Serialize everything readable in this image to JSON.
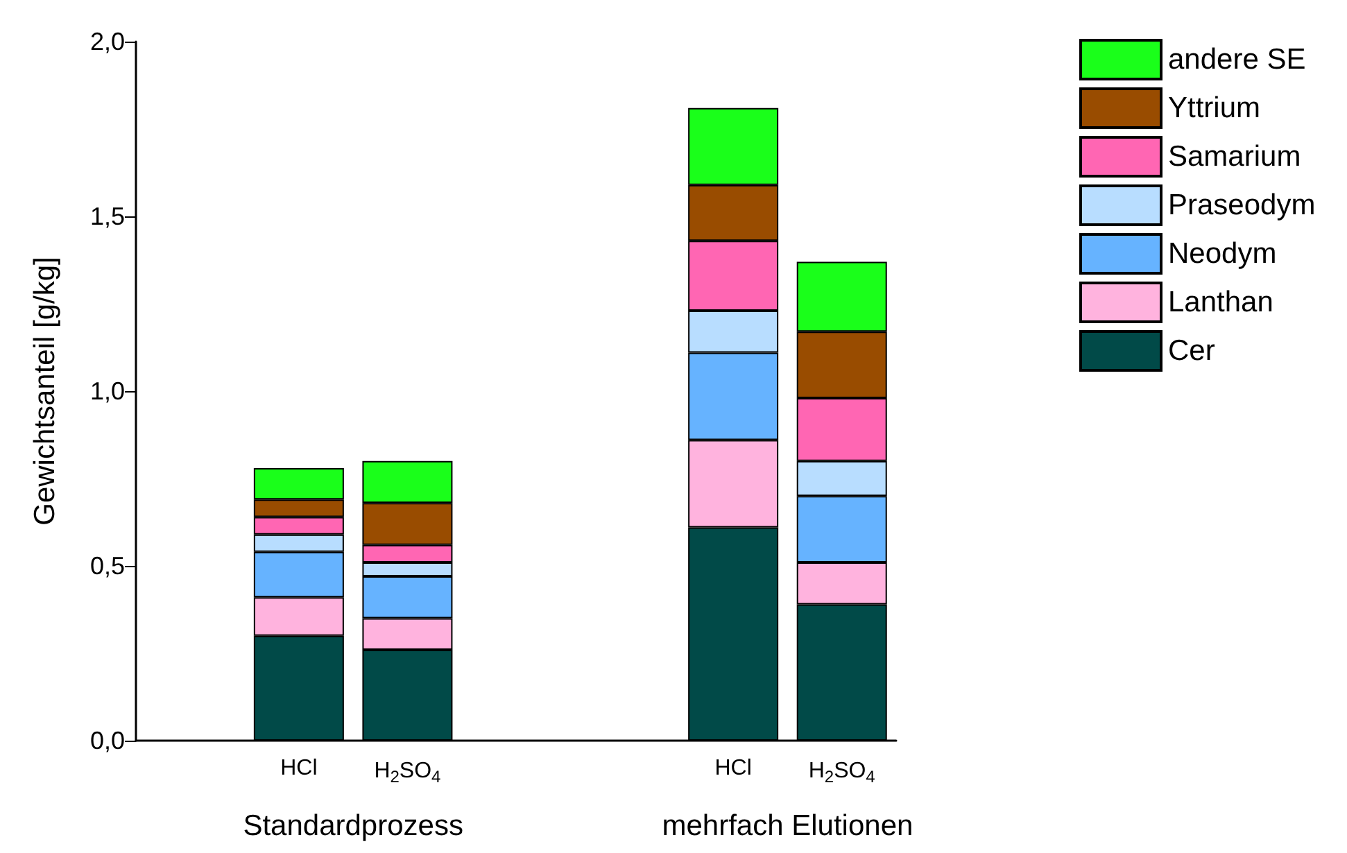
{
  "chart_data": {
    "type": "bar",
    "stacked": true,
    "ylabel": "Gewichtsanteil [g/kg]",
    "categories": [
      null,
      "HCl",
      "H$_{2}$SO$_{4}$",
      null,
      null,
      "HCl",
      "H$_{2}$SO$_{4}$"
    ],
    "series": [
      {
        "name": "Cer",
        "color": "#014a48",
        "values": [
          null,
          0.3,
          0.26,
          null,
          null,
          0.61,
          0.39
        ]
      },
      {
        "name": "Lanthan",
        "color": "#ffb3de",
        "values": [
          null,
          0.11,
          0.09,
          null,
          null,
          0.25,
          0.12
        ]
      },
      {
        "name": "Neodym",
        "color": "#66b3ff",
        "values": [
          null,
          0.13,
          0.12,
          null,
          null,
          0.25,
          0.19
        ]
      },
      {
        "name": "Praseodym",
        "color": "#b8ddff",
        "values": [
          null,
          0.05,
          0.04,
          null,
          null,
          0.12,
          0.1
        ]
      },
      {
        "name": "Samarium",
        "color": "#ff66b3",
        "values": [
          null,
          0.05,
          0.05,
          null,
          null,
          0.2,
          0.18
        ]
      },
      {
        "name": "Yttrium",
        "color": "#994c00",
        "values": [
          null,
          0.05,
          0.12,
          null,
          null,
          0.16,
          0.19
        ]
      },
      {
        "name": "andere SE",
        "color": "#1aff1a",
        "values": [
          null,
          0.09,
          0.12,
          null,
          null,
          0.22,
          0.2
        ]
      }
    ],
    "ylim": [
      0,
      2
    ],
    "yticks": [
      {
        "value": 0,
        "label": "0,0"
      },
      {
        "value": 0.5,
        "label": "0,5"
      },
      {
        "value": 1,
        "label": "1,0"
      },
      {
        "value": 1.5,
        "label": "1,5"
      },
      {
        "value": 2,
        "label": "2,0"
      }
    ],
    "annotations": [
      "Standardprozess",
      "mehrfach Elutionen"
    ],
    "grid": false,
    "legend": "right"
  }
}
